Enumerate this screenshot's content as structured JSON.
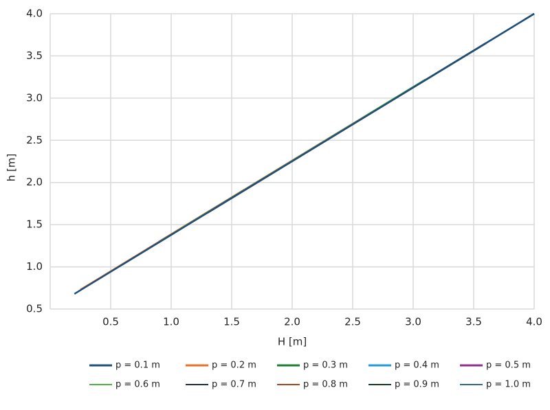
{
  "chart_data": {
    "type": "line",
    "xlabel": "H [m]",
    "ylabel": "h [m]",
    "xlim": [
      0,
      4
    ],
    "ylim": [
      0.5,
      4
    ],
    "xticks": [
      0.5,
      {
        "value": 1,
        "label": "1.0"
      },
      1.5,
      {
        "value": 2,
        "label": "2.0"
      },
      2.5,
      {
        "value": 3,
        "label": "3.0"
      },
      3.5,
      {
        "value": 4,
        "label": "4.0"
      }
    ],
    "yticks": [
      0.5,
      {
        "value": 1,
        "label": "1.0"
      },
      1.5,
      {
        "value": 2,
        "label": "2.0"
      },
      2.5,
      {
        "value": 3,
        "label": "3.0"
      },
      3.5,
      {
        "value": 4,
        "label": "4.0"
      }
    ],
    "grid": true,
    "series": [
      {
        "name": "p = 0.1 m",
        "color": "#1f4e79",
        "x": [
          0.2,
          4.0
        ],
        "values": [
          0.68,
          4.0
        ]
      },
      {
        "name": "p = 0.2 m",
        "color": "#e8702a",
        "x": [
          0.25,
          2.6
        ],
        "values": [
          0.73,
          2.78
        ]
      },
      {
        "name": "p = 0.3 m",
        "color": "#1e7b34",
        "x": [
          0.55,
          1.6
        ],
        "values": [
          0.99,
          1.91
        ]
      },
      {
        "name": "p = 0.4 m",
        "color": "#1f9ad6",
        "x": [
          0.6,
          2.6
        ],
        "values": [
          1.03,
          2.78
        ]
      },
      {
        "name": "p = 0.5 m",
        "color": "#8b2f8a",
        "x": [
          0.8,
          2.2
        ],
        "values": [
          1.21,
          2.43
        ]
      },
      {
        "name": "p = 0.6 m",
        "color": "#4caf3f",
        "x": [
          0.9,
          3.1
        ],
        "values": [
          1.3,
          3.22
        ]
      },
      {
        "name": "p = 0.7 m",
        "color": "#1b2a48",
        "x": [
          1.1,
          3.6
        ],
        "values": [
          1.47,
          3.65
        ]
      },
      {
        "name": "p = 0.8 m",
        "color": "#a5461f",
        "x": [
          1.2,
          3.6
        ],
        "values": [
          1.56,
          3.65
        ]
      },
      {
        "name": "p = 0.9 m",
        "color": "#1a3a1f",
        "x": [
          1.3,
          3.6
        ],
        "values": [
          1.64,
          3.65
        ]
      },
      {
        "name": "p = 1.0 m",
        "color": "#2b6a8e",
        "x": [
          1.4,
          4.0
        ],
        "values": [
          1.73,
          4.0
        ]
      }
    ]
  }
}
